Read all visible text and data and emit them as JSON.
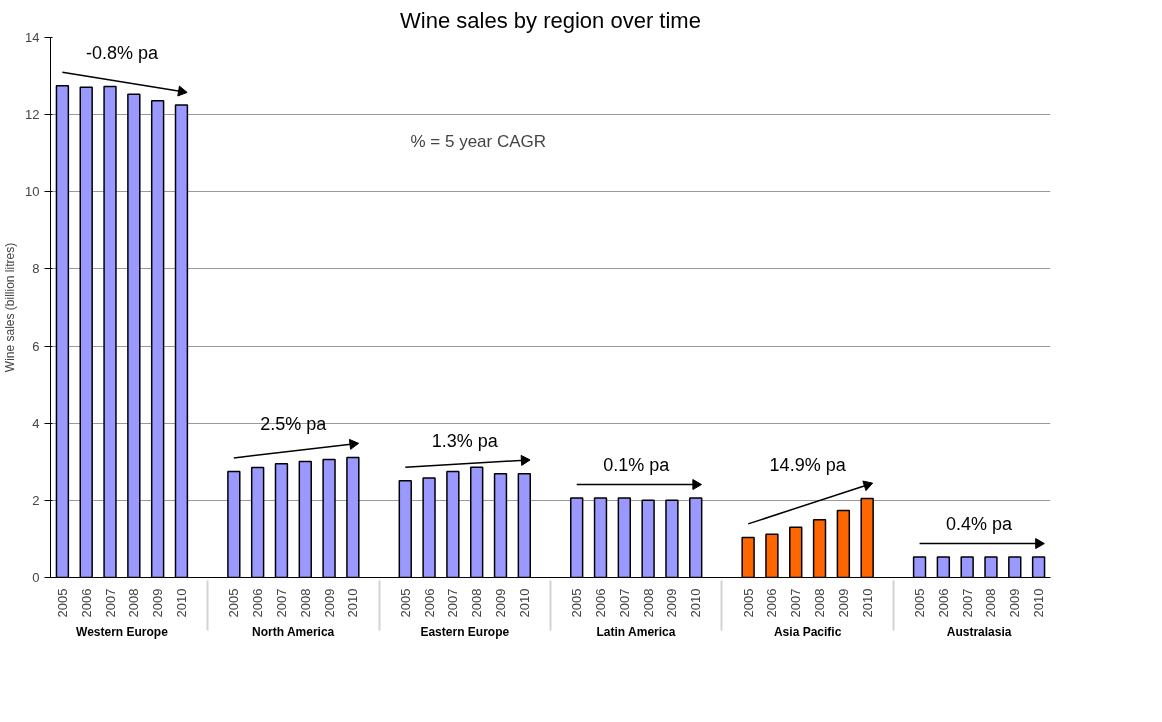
{
  "chart_data": {
    "type": "bar",
    "title": "Wine sales by region over time",
    "ylabel": "Wine sales (billion litres)",
    "categories": [
      "Western Europe",
      "North America",
      "Eastern Europe",
      "Latin America",
      "Asia Pacific",
      "Australasia"
    ],
    "series": [
      {
        "name": "2005",
        "colors": [
          "#9999ff",
          "#9999ff",
          "#9999ff",
          "#9999ff",
          "#ff6600",
          "#9999ff"
        ],
        "values": [
          12.75,
          2.75,
          2.51,
          2.06,
          1.04,
          0.53
        ]
      },
      {
        "name": "2006",
        "colors": [
          "#9999ff",
          "#9999ff",
          "#9999ff",
          "#9999ff",
          "#ff6600",
          "#9999ff"
        ],
        "values": [
          12.71,
          2.85,
          2.58,
          2.06,
          1.12,
          0.53
        ]
      },
      {
        "name": "2007",
        "colors": [
          "#9999ff",
          "#9999ff",
          "#9999ff",
          "#9999ff",
          "#ff6600",
          "#9999ff"
        ],
        "values": [
          12.73,
          2.95,
          2.75,
          2.06,
          1.3,
          0.53
        ]
      },
      {
        "name": "2008",
        "colors": [
          "#9999ff",
          "#9999ff",
          "#9999ff",
          "#9999ff",
          "#ff6600",
          "#9999ff"
        ],
        "values": [
          12.53,
          3.01,
          2.86,
          2.0,
          1.5,
          0.53
        ]
      },
      {
        "name": "2009",
        "colors": [
          "#9999ff",
          "#9999ff",
          "#9999ff",
          "#9999ff",
          "#ff6600",
          "#9999ff"
        ],
        "values": [
          12.36,
          3.06,
          2.69,
          2.0,
          1.74,
          0.53
        ]
      },
      {
        "name": "2010",
        "colors": [
          "#9999ff",
          "#9999ff",
          "#9999ff",
          "#9999ff",
          "#ff6600",
          "#9999ff"
        ],
        "values": [
          12.25,
          3.11,
          2.69,
          2.06,
          2.05,
          0.53
        ]
      }
    ],
    "ylim": [
      0,
      14
    ],
    "yticks": [
      0,
      2,
      4,
      6,
      8,
      10,
      12,
      14
    ],
    "grid": "y",
    "annotations": [
      "-0.8% pa",
      "2.5% pa",
      "1.3% pa",
      "0.1% pa",
      "14.9% pa",
      "0.4% pa",
      "% = 5 year CAGR"
    ]
  }
}
